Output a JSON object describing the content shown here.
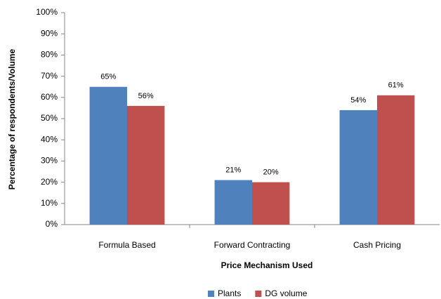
{
  "chart_data": {
    "type": "bar",
    "categories": [
      "Formula Based",
      "Forward Contracting",
      "Cash Pricing"
    ],
    "series": [
      {
        "name": "Plants",
        "color": "#4f81bd",
        "values": [
          65,
          21,
          54
        ],
        "value_labels": [
          "65%",
          "21%",
          "54%"
        ]
      },
      {
        "name": "DG volume",
        "color": "#c0504d",
        "values": [
          56,
          20,
          61
        ],
        "value_labels": [
          "56%",
          "20%",
          "61%"
        ]
      }
    ],
    "xlabel": "Price Mechanism Used",
    "ylabel": "Percentage of respondents/Volume",
    "ylim": [
      0,
      100
    ],
    "yticks": [
      {
        "value": 0,
        "label": "0%"
      },
      {
        "value": 10,
        "label": "10%"
      },
      {
        "value": 20,
        "label": "20%"
      },
      {
        "value": 30,
        "label": "30%"
      },
      {
        "value": 40,
        "label": "40%"
      },
      {
        "value": 50,
        "label": "50%"
      },
      {
        "value": 60,
        "label": "60%"
      },
      {
        "value": 70,
        "label": "70%"
      },
      {
        "value": 80,
        "label": "80%"
      },
      {
        "value": 90,
        "label": "90%"
      },
      {
        "value": 100,
        "label": "100%"
      }
    ],
    "grid": false,
    "legend": "bottom"
  }
}
